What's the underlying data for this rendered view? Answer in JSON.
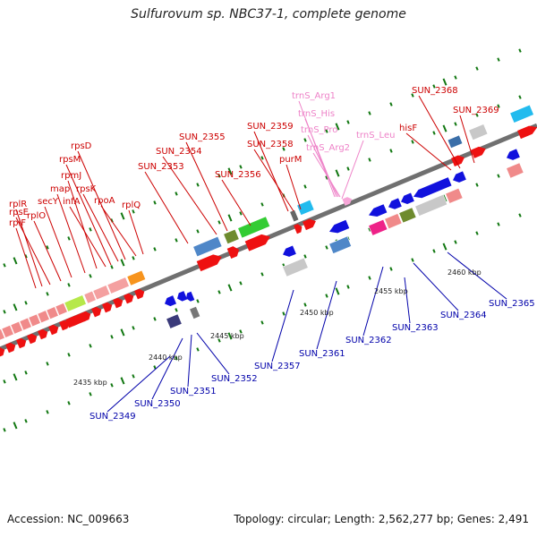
{
  "title": "Sulfurovum sp. NBC37-1, complete genome",
  "footer": {
    "accession": "Accession: NC_009663",
    "summary": "Topology: circular; Length: 2,562,277 bp; Genes: 2,491"
  },
  "colors": {
    "forward_label": "#cc0000",
    "reverse_label": "#0000aa",
    "rna_label": "#ee82c8",
    "backbone": "#707070",
    "ticks": "#117711"
  },
  "kbp_labels": [
    "2435 kbp",
    "2440 kbp",
    "2445 kbp",
    "2450 kbp",
    "2455 kbp",
    "2460 kbp"
  ],
  "upper_labels": [
    "rplF",
    "rplR",
    "rpsE",
    "rplO",
    "secY",
    "map",
    "rpmJ",
    "infA",
    "rpsM",
    "rpsK",
    "rpsD",
    "rpoA",
    "rplQ",
    "SUN_2353",
    "SUN_2354",
    "SUN_2355",
    "SUN_2356",
    "SUN_2359",
    "SUN_2358",
    "purM",
    "trnS_Arg1",
    "trnS_His",
    "trnS_Pro",
    "trnS_Arg2",
    "trnS_Leu",
    "hisF",
    "SUN_2368",
    "SUN_2369"
  ],
  "lower_labels": [
    "SUN_2349",
    "SUN_2350",
    "SUN_2351",
    "SUN_2352",
    "SUN_2357",
    "SUN_2361",
    "SUN_2362",
    "SUN_2363",
    "SUN_2364",
    "SUN_2365"
  ]
}
